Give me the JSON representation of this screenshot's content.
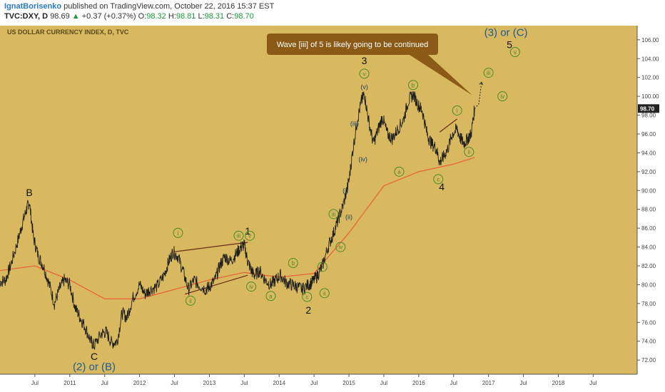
{
  "header": {
    "author": "IgnatBorisenko",
    "published_text": "published on TradingView.com, October 22, 2016 15:37 EST",
    "symbol": "TVC:DXY, D",
    "last": "98.69",
    "change_arrow": "▲",
    "change": "+0.37 (+0.37%)",
    "o_label": "O:",
    "o_value": "98.32",
    "h_label": "H:",
    "h_value": "98.81",
    "l_label": "L:",
    "l_value": "98.31",
    "c_label": "C:",
    "c_value": "98.70"
  },
  "colors": {
    "background": "#d8b95f",
    "price_line": "#1e1e1e",
    "moving_average": "#e8643a",
    "wave_green": "#4a8a2a",
    "wave_blue": "#1d5a96",
    "callout_bg": "#8b5a16",
    "price_tag": "#222222"
  },
  "chart_data": {
    "type": "line",
    "title": "US DOLLAR CURRENCY INDEX, D, TVC",
    "price_tag": "98.70",
    "y_range": [
      70.5,
      107.5
    ],
    "y_ticks": [
      "72.00",
      "74.00",
      "76.00",
      "78.00",
      "80.00",
      "82.00",
      "84.00",
      "86.00",
      "88.00",
      "90.00",
      "92.00",
      "94.00",
      "96.00",
      "98.00",
      "100.00",
      "102.00",
      "104.00",
      "106.00"
    ],
    "x_range": [
      2010.0,
      2019.13
    ],
    "x_ticks": [
      {
        "label": "Jul",
        "t": 2010.5
      },
      {
        "label": "2011",
        "t": 2011.0
      },
      {
        "label": "Jul",
        "t": 2011.5
      },
      {
        "label": "2012",
        "t": 2012.0
      },
      {
        "label": "Jul",
        "t": 2012.5
      },
      {
        "label": "2013",
        "t": 2013.0
      },
      {
        "label": "Jul",
        "t": 2013.5
      },
      {
        "label": "2014",
        "t": 2014.0
      },
      {
        "label": "Jul",
        "t": 2014.5
      },
      {
        "label": "2015",
        "t": 2015.0
      },
      {
        "label": "Jul",
        "t": 2015.5
      },
      {
        "label": "2016",
        "t": 2016.0
      },
      {
        "label": "Jul",
        "t": 2016.5
      },
      {
        "label": "2017",
        "t": 2017.0
      },
      {
        "label": "Jul",
        "t": 2017.5
      },
      {
        "label": "2018",
        "t": 2018.0
      },
      {
        "label": "Jul",
        "t": 2018.5
      }
    ],
    "series": [
      {
        "values": [
          [
            2010.0,
            80.3
          ],
          [
            2010.08,
            80.5
          ],
          [
            2010.15,
            82.0
          ],
          [
            2010.25,
            84.5
          ],
          [
            2010.32,
            86.5
          ],
          [
            2010.38,
            88.0
          ],
          [
            2010.42,
            88.8
          ],
          [
            2010.48,
            85.0
          ],
          [
            2010.55,
            83.0
          ],
          [
            2010.62,
            82.0
          ],
          [
            2010.7,
            80.2
          ],
          [
            2010.78,
            78.0
          ],
          [
            2010.85,
            79.5
          ],
          [
            2010.92,
            80.5
          ],
          [
            2011.0,
            80.0
          ],
          [
            2011.08,
            77.5
          ],
          [
            2011.15,
            76.5
          ],
          [
            2011.22,
            75.5
          ],
          [
            2011.3,
            74.0
          ],
          [
            2011.35,
            73.5
          ],
          [
            2011.45,
            74.8
          ],
          [
            2011.52,
            75.0
          ],
          [
            2011.6,
            73.8
          ],
          [
            2011.68,
            74.0
          ],
          [
            2011.75,
            77.0
          ],
          [
            2011.82,
            76.5
          ],
          [
            2011.9,
            78.5
          ],
          [
            2012.0,
            80.0
          ],
          [
            2012.08,
            79.0
          ],
          [
            2012.15,
            79.5
          ],
          [
            2012.25,
            79.8
          ],
          [
            2012.35,
            81.0
          ],
          [
            2012.42,
            82.5
          ],
          [
            2012.48,
            83.5
          ],
          [
            2012.55,
            83.0
          ],
          [
            2012.62,
            81.5
          ],
          [
            2012.7,
            79.5
          ],
          [
            2012.78,
            80.5
          ],
          [
            2012.85,
            80.0
          ],
          [
            2012.95,
            79.5
          ],
          [
            2013.0,
            79.8
          ],
          [
            2013.08,
            80.5
          ],
          [
            2013.15,
            82.0
          ],
          [
            2013.22,
            83.0
          ],
          [
            2013.3,
            82.5
          ],
          [
            2013.38,
            83.2
          ],
          [
            2013.45,
            84.0
          ],
          [
            2013.5,
            84.2
          ],
          [
            2013.55,
            82.5
          ],
          [
            2013.6,
            81.5
          ],
          [
            2013.65,
            81.0
          ],
          [
            2013.72,
            81.5
          ],
          [
            2013.8,
            80.5
          ],
          [
            2013.88,
            80.0
          ],
          [
            2013.95,
            80.5
          ],
          [
            2014.02,
            81.0
          ],
          [
            2014.1,
            80.2
          ],
          [
            2014.18,
            80.0
          ],
          [
            2014.25,
            79.8
          ],
          [
            2014.33,
            79.5
          ],
          [
            2014.42,
            80.0
          ],
          [
            2014.48,
            80.3
          ],
          [
            2014.55,
            81.0
          ],
          [
            2014.62,
            82.0
          ],
          [
            2014.7,
            84.0
          ],
          [
            2014.78,
            85.5
          ],
          [
            2014.85,
            87.0
          ],
          [
            2014.92,
            88.5
          ],
          [
            2015.0,
            91.0
          ],
          [
            2015.05,
            94.0
          ],
          [
            2015.12,
            97.5
          ],
          [
            2015.18,
            99.5
          ],
          [
            2015.22,
            100.3
          ],
          [
            2015.28,
            97.5
          ],
          [
            2015.35,
            95.0
          ],
          [
            2015.42,
            96.5
          ],
          [
            2015.48,
            97.8
          ],
          [
            2015.55,
            96.0
          ],
          [
            2015.62,
            95.5
          ],
          [
            2015.7,
            96.5
          ],
          [
            2015.78,
            97.5
          ],
          [
            2015.85,
            99.5
          ],
          [
            2015.92,
            100.2
          ],
          [
            2016.0,
            99.0
          ],
          [
            2016.05,
            98.5
          ],
          [
            2016.12,
            96.0
          ],
          [
            2016.18,
            95.0
          ],
          [
            2016.25,
            94.5
          ],
          [
            2016.3,
            93.0
          ],
          [
            2016.35,
            93.5
          ],
          [
            2016.42,
            94.5
          ],
          [
            2016.48,
            96.0
          ],
          [
            2016.55,
            96.5
          ],
          [
            2016.6,
            95.5
          ],
          [
            2016.65,
            95.0
          ],
          [
            2016.7,
            95.5
          ],
          [
            2016.75,
            96.0
          ],
          [
            2016.8,
            98.7
          ]
        ]
      },
      {
        "name": "MA",
        "values": [
          [
            2010.0,
            81.5
          ],
          [
            2010.5,
            82.0
          ],
          [
            2011.0,
            80.5
          ],
          [
            2011.5,
            78.5
          ],
          [
            2012.0,
            78.5
          ],
          [
            2012.5,
            79.5
          ],
          [
            2013.0,
            80.5
          ],
          [
            2013.5,
            81.3
          ],
          [
            2014.0,
            80.8
          ],
          [
            2014.5,
            81.2
          ],
          [
            2015.0,
            85.5
          ],
          [
            2015.5,
            90.5
          ],
          [
            2016.0,
            92.0
          ],
          [
            2016.5,
            92.8
          ],
          [
            2016.8,
            93.5
          ]
        ]
      }
    ],
    "projection": [
      [
        2016.8,
        98.7
      ],
      [
        2016.9,
        101.5
      ]
    ],
    "trendlines": [
      [
        [
          2012.5,
          83.5
        ],
        [
          2013.55,
          84.5
        ]
      ],
      [
        [
          2012.65,
          79.0
        ],
        [
          2013.55,
          81.0
        ]
      ],
      [
        [
          2016.3,
          96.2
        ],
        [
          2016.55,
          97.6
        ]
      ]
    ],
    "callout": "Wave [iii] of 5 is likely going to be continued",
    "labels": [
      {
        "text": "B",
        "t": 2010.42,
        "y": 89.8,
        "style": "plain"
      },
      {
        "text": "C",
        "t": 2011.35,
        "y": 72.4,
        "style": "plain"
      },
      {
        "text": "(2) or (B)",
        "t": 2011.35,
        "y": 71.3,
        "style": "blue"
      },
      {
        "text": "1",
        "t": 2013.55,
        "y": 85.7,
        "style": "plain"
      },
      {
        "text": "2",
        "t": 2014.42,
        "y": 77.3,
        "style": "plain"
      },
      {
        "text": "3",
        "t": 2015.22,
        "y": 103.8,
        "style": "plain"
      },
      {
        "text": "4",
        "t": 2016.33,
        "y": 90.4,
        "style": "plain"
      },
      {
        "text": "5",
        "t": 2017.3,
        "y": 105.5,
        "style": "plain"
      },
      {
        "text": "(3) or (C)",
        "t": 2017.25,
        "y": 106.8,
        "style": "blue"
      },
      {
        "text": "i",
        "t": 2012.55,
        "y": 85.5,
        "style": "green"
      },
      {
        "text": "ii",
        "t": 2012.73,
        "y": 78.3,
        "style": "green"
      },
      {
        "text": "iii",
        "t": 2013.42,
        "y": 85.2,
        "style": "green"
      },
      {
        "text": "v",
        "t": 2013.58,
        "y": 85.2,
        "style": "green"
      },
      {
        "text": "iv",
        "t": 2013.6,
        "y": 79.8,
        "style": "green"
      },
      {
        "text": "a",
        "t": 2013.88,
        "y": 78.8,
        "style": "green"
      },
      {
        "text": "b",
        "t": 2014.2,
        "y": 82.3,
        "style": "green"
      },
      {
        "text": "c",
        "t": 2014.4,
        "y": 78.7,
        "style": "green"
      },
      {
        "text": "i",
        "t": 2014.62,
        "y": 81.9,
        "style": "green"
      },
      {
        "text": "ii",
        "t": 2014.65,
        "y": 79.1,
        "style": "green"
      },
      {
        "text": "iii",
        "t": 2014.78,
        "y": 87.5,
        "style": "green"
      },
      {
        "text": "iv",
        "t": 2014.88,
        "y": 84.0,
        "style": "green"
      },
      {
        "text": "v",
        "t": 2015.22,
        "y": 102.4,
        "style": "green"
      },
      {
        "text": "a",
        "t": 2015.72,
        "y": 92.0,
        "style": "green"
      },
      {
        "text": "b",
        "t": 2015.92,
        "y": 101.2,
        "style": "green"
      },
      {
        "text": "c",
        "t": 2016.28,
        "y": 91.2,
        "style": "green"
      },
      {
        "text": "i",
        "t": 2016.55,
        "y": 98.5,
        "style": "green"
      },
      {
        "text": "ii",
        "t": 2016.72,
        "y": 94.1,
        "style": "green"
      },
      {
        "text": "iii",
        "t": 2017.0,
        "y": 102.5,
        "style": "green"
      },
      {
        "text": "iv",
        "t": 2017.2,
        "y": 100.0,
        "style": "green"
      },
      {
        "text": "v",
        "t": 2017.38,
        "y": 104.7,
        "style": "green"
      },
      {
        "text": "(v)",
        "t": 2015.22,
        "y": 101.0,
        "style": "navy"
      },
      {
        "text": "(iii)",
        "t": 2015.08,
        "y": 97.1,
        "style": "navy"
      },
      {
        "text": "(iv)",
        "t": 2015.2,
        "y": 93.3,
        "style": "navy"
      },
      {
        "text": "(i)",
        "t": 2014.95,
        "y": 90.0,
        "style": "navy"
      },
      {
        "text": "(ii)",
        "t": 2015.0,
        "y": 87.2,
        "style": "navy"
      }
    ]
  }
}
